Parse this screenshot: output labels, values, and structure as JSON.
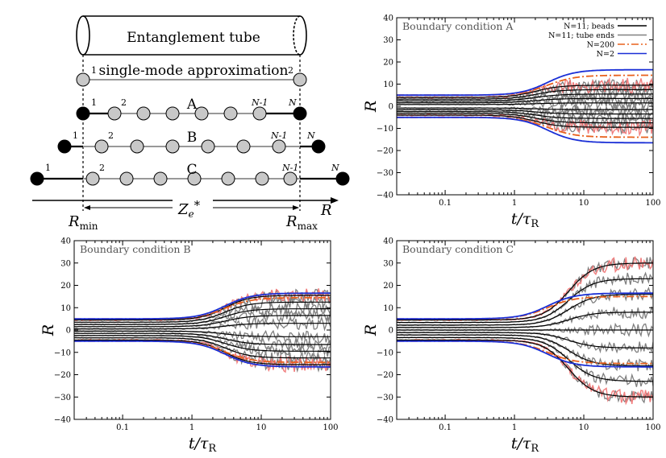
{
  "diagram": {
    "tube_label": "Entanglement tube",
    "sma_label": "single-mode approximation",
    "rows": [
      {
        "name": "A",
        "first": "1",
        "second": "2",
        "nm1": "N-1",
        "n": "N"
      },
      {
        "name": "B",
        "first": "1",
        "second": "2",
        "nm1": "N-1",
        "n": "N"
      },
      {
        "name": "C",
        "first": "1",
        "second": "2",
        "nm1": "N-1",
        "n": "N"
      }
    ],
    "sma_first": "1",
    "sma_second": "2",
    "ze_label": "Z",
    "ze_sub": "e",
    "ze_sup": "*",
    "rmin_label": "R",
    "rmin_sub": "min",
    "rmax_label": "R",
    "rmax_sub": "max",
    "axis_label": "R"
  },
  "colors": {
    "beads": "#000000",
    "tube_ends": "#808080",
    "n200": "#e8601c",
    "n2": "#1a2fd6",
    "noise_red": "#f07070",
    "bead_fill": "#c8c8c8"
  },
  "chart_data": [
    {
      "type": "line",
      "title": "Boundary condition A",
      "xlabel": "t/τ_R",
      "ylabel": "R",
      "xscale": "log",
      "xlim": [
        0.02,
        100
      ],
      "ylim": [
        -40,
        40
      ],
      "xticks": [
        "0.1",
        "1",
        "10",
        "100"
      ],
      "yticks": [
        "−40",
        "−30",
        "−20",
        "−10",
        "0",
        "10",
        "20",
        "30",
        "40"
      ],
      "legend": [
        "N=11; beads",
        "N=11; tube ends",
        "N=200",
        "N=2"
      ],
      "legend_position": "top-right",
      "series": [
        {
          "name": "N=11; beads",
          "final_values": [
            9.5,
            7.5,
            5.5,
            3.5,
            1.5,
            -1.5,
            -3.5,
            -5.5,
            -7.5,
            -9.5
          ],
          "start_values": [
            4,
            3.2,
            2.4,
            1.6,
            0.8,
            -0.8,
            -1.6,
            -2.4,
            -3.2,
            -4
          ],
          "transition_t": 2
        },
        {
          "name": "N=11; tube ends",
          "values": [
            -9.5,
            9.5
          ]
        },
        {
          "name": "N=200",
          "start_values": [
            5,
            -5
          ],
          "final_values": [
            14,
            -14
          ],
          "transition_t": 3
        },
        {
          "name": "N=2",
          "start_values": [
            5,
            -5
          ],
          "final_values": [
            16.5,
            -16.5
          ],
          "transition_t": 3
        }
      ]
    },
    {
      "type": "line",
      "title": "Boundary condition B",
      "xlabel": "t/τ_R",
      "ylabel": "R",
      "xscale": "log",
      "xlim": [
        0.02,
        100
      ],
      "ylim": [
        -40,
        40
      ],
      "xticks": [
        "0.1",
        "1",
        "10",
        "100"
      ],
      "yticks": [
        "−40",
        "−30",
        "−20",
        "−10",
        "0",
        "10",
        "20",
        "30",
        "40"
      ],
      "series": [
        {
          "name": "N=11; beads",
          "final_values": [
            15.5,
            12.5,
            9.5,
            6.5,
            3,
            -3,
            -6.5,
            -9.5,
            -12.5,
            -15.5
          ],
          "start_values": [
            4.5,
            3.5,
            2.5,
            1.5,
            0.5,
            -0.5,
            -1.5,
            -2.5,
            -3.5,
            -4.5
          ],
          "transition_t": 3
        },
        {
          "name": "N=200",
          "start_values": [
            5,
            -5
          ],
          "final_values": [
            14.5,
            -14.5
          ],
          "transition_t": 3
        },
        {
          "name": "N=2",
          "start_values": [
            5,
            -5
          ],
          "final_values": [
            16.5,
            -16.5
          ],
          "transition_t": 3
        }
      ]
    },
    {
      "type": "line",
      "title": "Boundary condition C",
      "xlabel": "t/τ_R",
      "ylabel": "R",
      "xscale": "log",
      "xlim": [
        0.02,
        100
      ],
      "ylim": [
        -40,
        40
      ],
      "xticks": [
        "0.1",
        "1",
        "10",
        "100"
      ],
      "yticks": [
        "−40",
        "−30",
        "−20",
        "−10",
        "0",
        "10",
        "20",
        "30",
        "40"
      ],
      "series": [
        {
          "name": "N=11; beads",
          "final_values": [
            30,
            23,
            16,
            8,
            0,
            -8,
            -16,
            -23,
            -30
          ],
          "start_values": [
            4.5,
            3.4,
            2.2,
            1.1,
            0,
            -1.1,
            -2.2,
            -3.4,
            -4.5
          ],
          "transition_t": 6
        },
        {
          "name": "N=200",
          "start_values": [
            5,
            -5
          ],
          "final_values": [
            15,
            -15
          ],
          "transition_t": 3
        },
        {
          "name": "N=2",
          "start_values": [
            5,
            -5
          ],
          "final_values": [
            16.5,
            -16.5
          ],
          "transition_t": 3
        }
      ]
    }
  ]
}
